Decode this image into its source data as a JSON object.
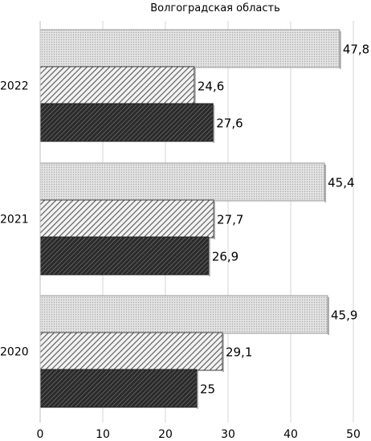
{
  "chart_data": {
    "type": "bar",
    "orientation": "horizontal",
    "title": "Волгоградская область",
    "categories": [
      "2022",
      "2021",
      "2020"
    ],
    "series": [
      {
        "values": [
          47.8,
          45.4,
          45.9
        ],
        "labels": [
          "47,8",
          "45,4",
          "45,9"
        ],
        "pattern": "dotted",
        "color": "#d9d9d9"
      },
      {
        "values": [
          24.6,
          27.7,
          29.1
        ],
        "labels": [
          "24,6",
          "27,7",
          "29,1"
        ],
        "pattern": "light-diagonal-hatch",
        "color": "#9a9a9a"
      },
      {
        "values": [
          27.6,
          26.9,
          25
        ],
        "labels": [
          "27,6",
          "26,9",
          "25"
        ],
        "pattern": "dark-diagonal-hatch",
        "color": "#3a3a3a"
      }
    ],
    "xlim": [
      0,
      50
    ],
    "xticks": [
      "0",
      "10",
      "20",
      "30",
      "40",
      "50"
    ],
    "grid": "vertical",
    "legend": "none"
  }
}
